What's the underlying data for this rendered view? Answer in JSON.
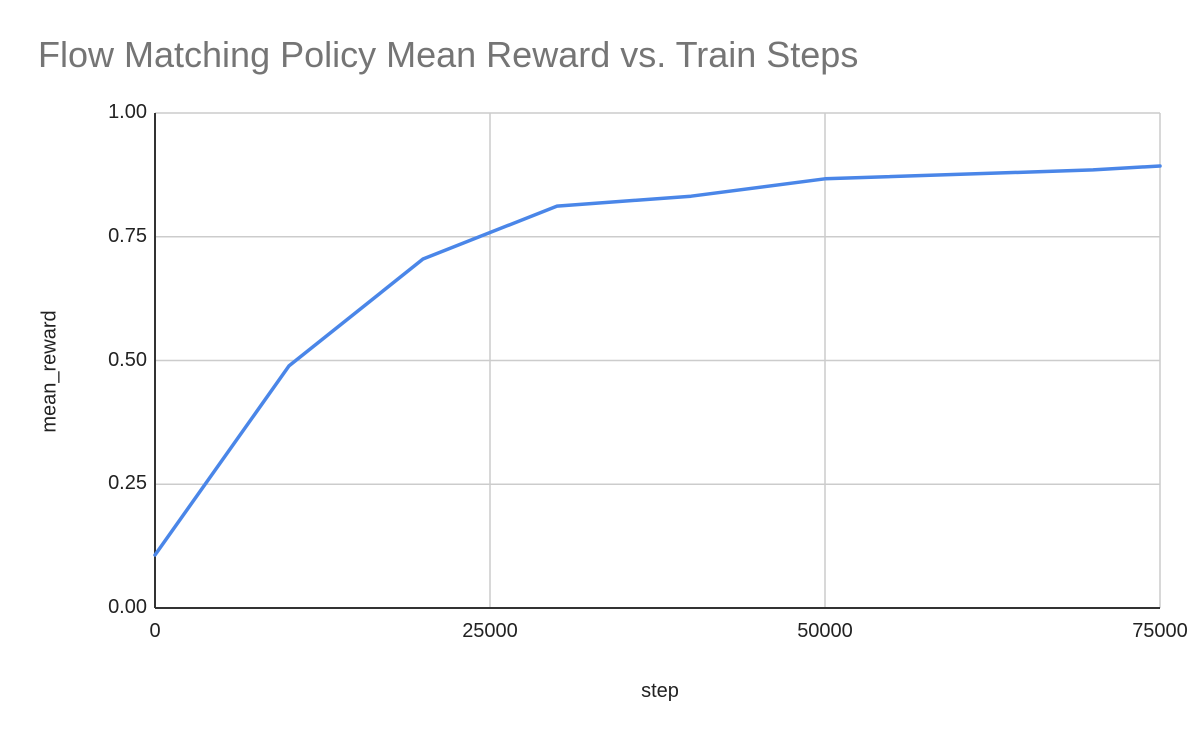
{
  "chart_data": {
    "type": "line",
    "title": "Flow Matching Policy Mean Reward vs. Train Steps",
    "xlabel": "step",
    "ylabel": "mean_reward",
    "x": [
      0,
      10000,
      20000,
      30000,
      40000,
      50000,
      70000,
      75000
    ],
    "series": [
      {
        "name": "mean_reward",
        "color": "#4a86e8",
        "values": [
          0.107,
          0.489,
          0.705,
          0.812,
          0.832,
          0.867,
          0.885,
          0.893
        ]
      }
    ],
    "xlim": [
      0,
      75000
    ],
    "ylim": [
      0,
      1.0
    ],
    "xticks": [
      "0",
      "25000",
      "50000",
      "75000"
    ],
    "yticks": [
      "0.00",
      "0.25",
      "0.50",
      "0.75",
      "1.00"
    ],
    "grid": true,
    "legend": "none"
  },
  "colors": {
    "line": "#4a86e8",
    "grid": "#cccccc",
    "axis": "#333333",
    "title": "#757575"
  }
}
